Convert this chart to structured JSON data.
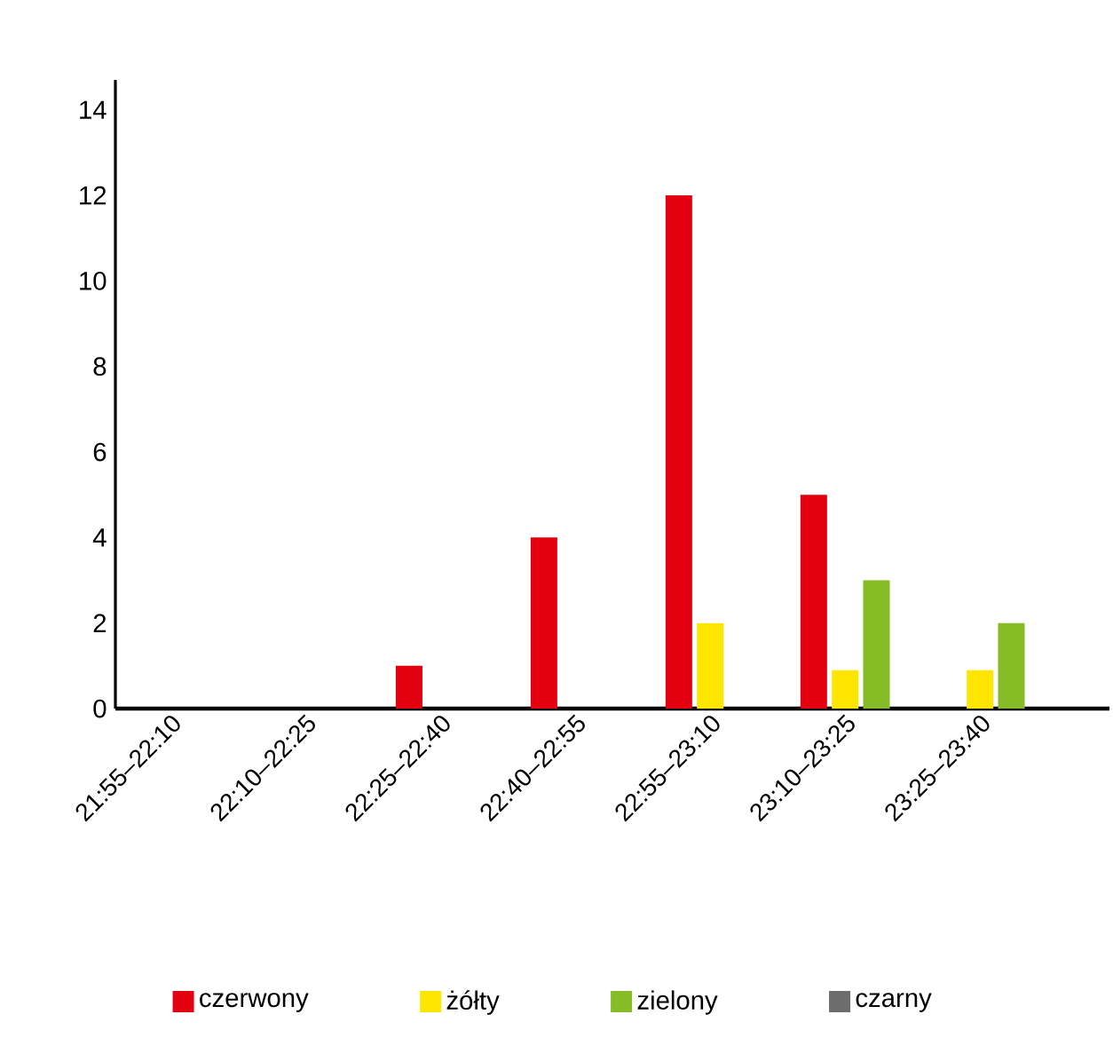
{
  "chart_data": {
    "type": "bar",
    "categories": [
      "21:55–22:10",
      "22:10–22:25",
      "22:25–22:40",
      "22:40–22:55",
      "22:55–23:10",
      "23:10–23:25",
      "23:25–23:40"
    ],
    "series": [
      {
        "name": "czerwony",
        "color": "#e3000f",
        "values": [
          null,
          null,
          1,
          4,
          12,
          5,
          null
        ]
      },
      {
        "name": "żółty",
        "color": "#ffe600",
        "values": [
          null,
          null,
          null,
          null,
          2,
          0.9,
          0.9
        ]
      },
      {
        "name": "zielony",
        "color": "#86bc25",
        "values": [
          null,
          null,
          null,
          null,
          null,
          3,
          2
        ]
      },
      {
        "name": "czarny",
        "color": "#6d6d6d",
        "values": [
          null,
          null,
          null,
          null,
          null,
          null,
          null
        ]
      }
    ],
    "ylim": [
      0,
      14.7
    ],
    "yticks": [
      0,
      2,
      4,
      6,
      8,
      10,
      12,
      14
    ],
    "grid": false,
    "legend": "bottom"
  }
}
